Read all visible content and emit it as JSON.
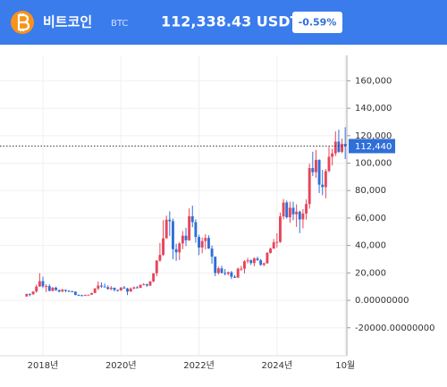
{
  "header": {
    "name": "비트코인",
    "ticker": "BTC",
    "price": "112,338.43 USDT",
    "change": "-0.59%"
  },
  "chart_data": {
    "type": "candlestick",
    "categories": [
      null,
      null,
      null,
      null,
      null,
      "2018년",
      null,
      null,
      null,
      null,
      null,
      null,
      null,
      null,
      null,
      null,
      null,
      null,
      null,
      null,
      null,
      null,
      null,
      null,
      null,
      null,
      null,
      null,
      null,
      "2020년",
      null,
      null,
      null,
      null,
      null,
      null,
      null,
      null,
      null,
      null,
      null,
      null,
      null,
      null,
      null,
      null,
      null,
      null,
      null,
      null,
      null,
      null,
      null,
      "2022년",
      null,
      null,
      null,
      null,
      null,
      null,
      null,
      null,
      null,
      null,
      null,
      null,
      null,
      null,
      null,
      null,
      null,
      null,
      null,
      null,
      null,
      null,
      null,
      "2024년",
      null,
      null,
      null,
      null,
      null,
      null,
      null,
      null,
      null,
      null,
      null,
      null,
      null,
      null,
      null,
      null,
      null,
      null,
      null,
      null,
      "10월"
    ],
    "open": [
      2870,
      4700,
      4340,
      6470,
      10000,
      14000,
      10200,
      10400,
      6900,
      9200,
      7500,
      6400,
      7700,
      7000,
      6600,
      6300,
      4000,
      3700,
      3450,
      3850,
      4100,
      5300,
      8600,
      10800,
      10100,
      9600,
      8300,
      9200,
      7600,
      7200,
      9350,
      8600,
      6400,
      8600,
      9450,
      9140,
      11350,
      11650,
      10780,
      13800,
      19700,
      29000,
      33100,
      45200,
      58800,
      57700,
      37300,
      35000,
      41500,
      47100,
      43800,
      61300,
      57000,
      46200,
      38500,
      43200,
      45500,
      37700,
      31800,
      19900,
      23300,
      20000,
      19400,
      20500,
      17200,
      16500,
      23100,
      23100,
      28500,
      29200,
      27200,
      30500,
      29200,
      25900,
      27000,
      34600,
      37700,
      42300,
      42600,
      61200,
      71300,
      60600,
      67500,
      62700,
      64600,
      59000,
      63300,
      70200,
      96400,
      93400,
      102400,
      84300,
      82500,
      94200,
      104600,
      107100,
      115700,
      108200,
      114000
    ],
    "high": [
      4750,
      4980,
      6470,
      11500,
      19800,
      17200,
      11800,
      11700,
      9800,
      10000,
      7800,
      8500,
      7800,
      7400,
      7000,
      6500,
      4300,
      4100,
      4200,
      4100,
      5600,
      9000,
      13800,
      13100,
      12300,
      10900,
      10400,
      9300,
      7800,
      9600,
      10500,
      9200,
      9500,
      10100,
      10400,
      11450,
      12500,
      12100,
      14100,
      19800,
      29300,
      41900,
      58400,
      61800,
      64900,
      59600,
      41300,
      42300,
      50500,
      52900,
      67000,
      69000,
      59100,
      47900,
      45800,
      48200,
      47400,
      40000,
      31900,
      24600,
      25200,
      22800,
      21000,
      21400,
      18400,
      23900,
      25200,
      29200,
      31000,
      29800,
      31400,
      31800,
      30100,
      27500,
      35200,
      38400,
      44700,
      48900,
      64000,
      73800,
      72700,
      71900,
      71900,
      70000,
      65500,
      66500,
      73600,
      99600,
      108300,
      109600,
      102700,
      95000,
      95700,
      111900,
      110500,
      123200,
      124400,
      117900,
      126200
    ],
    "low": [
      2600,
      2970,
      4170,
      5500,
      10000,
      9000,
      6000,
      6600,
      6500,
      7000,
      5800,
      6100,
      5900,
      6100,
      6200,
      3600,
      3150,
      3400,
      3400,
      3700,
      4100,
      5300,
      7500,
      9100,
      9400,
      7700,
      7400,
      6500,
      6400,
      6900,
      8500,
      3800,
      6200,
      8100,
      8800,
      8900,
      11100,
      9900,
      10400,
      13200,
      17600,
      28100,
      32400,
      45000,
      47000,
      30000,
      28800,
      29300,
      37300,
      39600,
      43300,
      53300,
      42000,
      33000,
      34300,
      37200,
      37600,
      26700,
      17600,
      18800,
      19600,
      18200,
      18200,
      15500,
      16300,
      16500,
      21400,
      19600,
      26900,
      25800,
      24800,
      28900,
      25200,
      24900,
      26600,
      34100,
      37600,
      38500,
      41900,
      59000,
      59600,
      56500,
      58400,
      53500,
      49000,
      52500,
      58900,
      66800,
      90500,
      89200,
      78200,
      76600,
      74400,
      93400,
      98200,
      105100,
      107500,
      107300,
      103000
    ],
    "close": [
      4700,
      4340,
      6470,
      10000,
      14000,
      10200,
      10400,
      6900,
      9200,
      7500,
      6400,
      7700,
      7000,
      6600,
      6300,
      4000,
      3700,
      3450,
      3850,
      4100,
      5300,
      8600,
      10800,
      10100,
      9600,
      8300,
      9200,
      7600,
      7200,
      9350,
      8600,
      6400,
      8600,
      9450,
      9140,
      11350,
      11650,
      10780,
      13800,
      19700,
      29000,
      33100,
      45200,
      58800,
      57700,
      37300,
      35000,
      41500,
      47100,
      43800,
      61300,
      57000,
      46200,
      38500,
      43200,
      45500,
      37700,
      31800,
      19900,
      23300,
      20000,
      19400,
      20500,
      17200,
      16500,
      23100,
      23100,
      28500,
      29200,
      27200,
      30500,
      29200,
      25900,
      27000,
      34600,
      37700,
      42300,
      42600,
      61200,
      71300,
      60600,
      67500,
      62700,
      64600,
      59000,
      63300,
      70200,
      96400,
      93400,
      102400,
      84300,
      82500,
      94200,
      104600,
      107100,
      115700,
      108200,
      114000,
      112440
    ],
    "up_color": "#e8455b",
    "down_color": "#2f6fd8",
    "last_price": 112440,
    "last_price_label": "112,440",
    "ylim": [
      -38400,
      173300
    ],
    "yticks": [
      {
        "value": 160000,
        "label": "160,000"
      },
      {
        "value": 140000,
        "label": "140,000"
      },
      {
        "value": 120000,
        "label": "120,000"
      },
      {
        "value": 100000,
        "label": "100,000"
      },
      {
        "value": 80000,
        "label": "80,000"
      },
      {
        "value": 60000,
        "label": "60,000"
      },
      {
        "value": 40000,
        "label": "40,000"
      },
      {
        "value": 20000,
        "label": "20,000"
      },
      {
        "value": 0,
        "label": "0.00000000"
      },
      {
        "value": -20000,
        "label": "-20000.00000000"
      }
    ],
    "grid": true
  }
}
